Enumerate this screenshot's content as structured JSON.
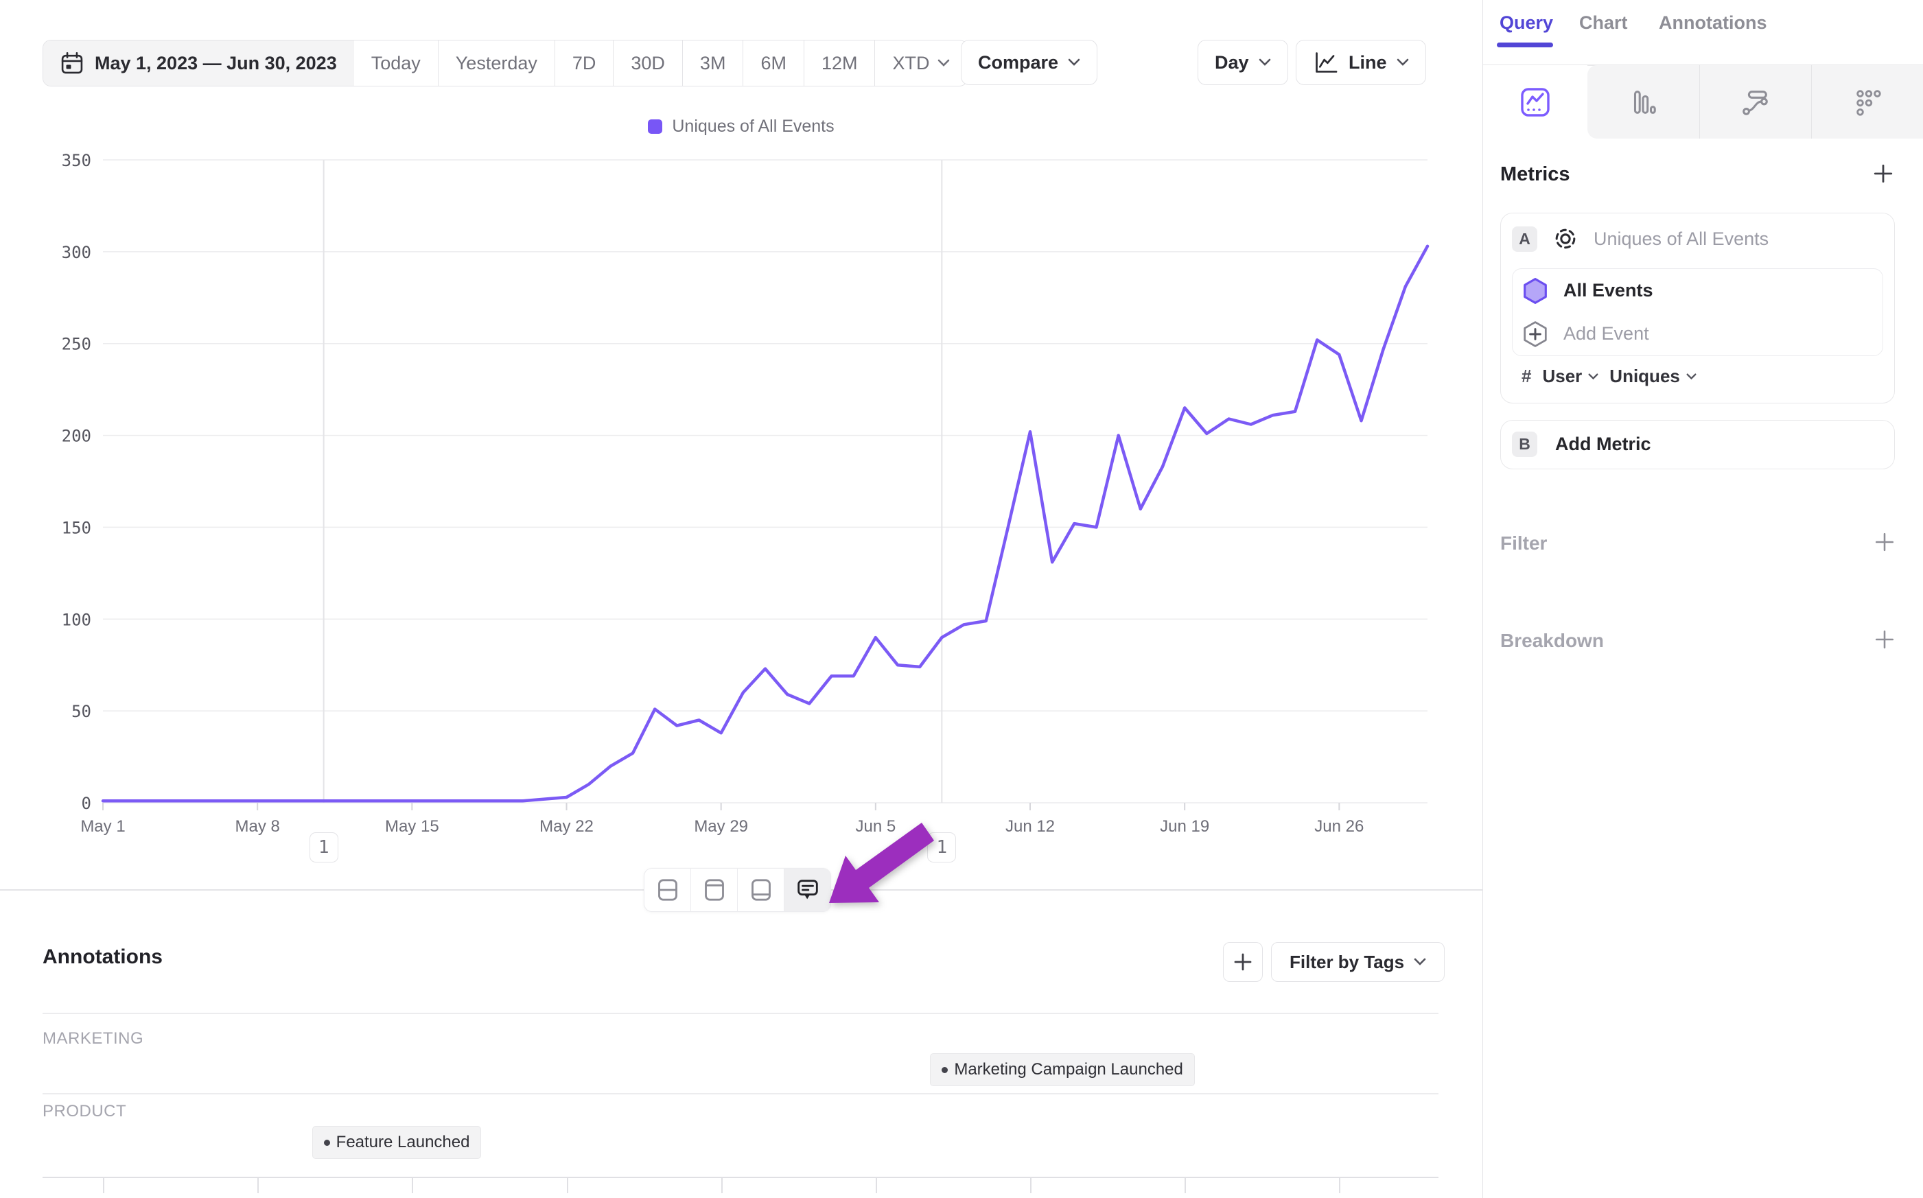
{
  "colors": {
    "accent": "#7B5AF5",
    "legend_swatch": "#7856F6",
    "tab_active": "#5246D6",
    "arrow": "#9C2EBE",
    "grid": "#ECECEE",
    "axis_line": "#E4E4E7",
    "chip_bg": "#F3F3F4"
  },
  "toolbar": {
    "date_range": "May 1, 2023 — Jun 30, 2023",
    "presets": [
      "Today",
      "Yesterday",
      "7D",
      "30D",
      "3M",
      "6M",
      "12M"
    ],
    "xtd": "XTD",
    "compare": "Compare",
    "granularity": "Day",
    "chart_type": "Line"
  },
  "legend": {
    "label": "Uniques of All Events"
  },
  "chart_data": {
    "type": "line",
    "title": "Uniques of All Events",
    "x_unit": "day",
    "x_range": [
      "May 1, 2023",
      "Jun 30, 2023"
    ],
    "x_tick_labels": [
      "May 1",
      "May 8",
      "May 15",
      "May 22",
      "May 29",
      "Jun 5",
      "Jun 12",
      "Jun 19",
      "Jun 26"
    ],
    "x_tick_days": [
      0,
      7,
      14,
      21,
      28,
      35,
      42,
      49,
      56
    ],
    "ylim": [
      0,
      350
    ],
    "y_ticks": [
      0,
      50,
      100,
      150,
      200,
      250,
      300,
      350
    ],
    "grid": "horizontal",
    "legend_position": "top-center",
    "series": [
      {
        "name": "Uniques of All Events",
        "color": "#7B5AF5",
        "values": [
          1,
          1,
          1,
          1,
          1,
          1,
          1,
          1,
          1,
          1,
          1,
          1,
          1,
          1,
          1,
          1,
          1,
          1,
          1,
          1,
          2,
          3,
          10,
          20,
          27,
          51,
          42,
          45,
          38,
          60,
          73,
          59,
          54,
          69,
          69,
          90,
          75,
          74,
          90,
          97,
          99,
          150,
          202,
          131,
          152,
          150,
          200,
          160,
          183,
          215,
          201,
          209,
          206,
          211,
          213,
          252,
          244,
          208,
          247,
          281,
          303
        ]
      }
    ],
    "annotation_markers": [
      {
        "day": 10,
        "badge": "1"
      },
      {
        "day": 38,
        "badge": "1"
      }
    ]
  },
  "chart_toolbar": {
    "buttons": [
      {
        "name": "layout-split-horizontal",
        "active": false
      },
      {
        "name": "layout-panel-top",
        "active": false
      },
      {
        "name": "layout-panel-bottom",
        "active": false
      },
      {
        "name": "toggle-annotations",
        "active": true
      }
    ]
  },
  "annotations_panel": {
    "title": "Annotations",
    "filter_button": "Filter by Tags",
    "groups": [
      {
        "name": "MARKETING",
        "items": [
          {
            "label": "Marketing Campaign Launched",
            "day": 38
          }
        ]
      },
      {
        "name": "PRODUCT",
        "items": [
          {
            "label": "Feature Launched",
            "day": 10
          }
        ]
      }
    ]
  },
  "sidebar": {
    "tabs": [
      {
        "label": "Query",
        "active": true
      },
      {
        "label": "Chart",
        "active": false
      },
      {
        "label": "Annotations",
        "active": false
      }
    ],
    "chart_types": [
      "insights",
      "bar",
      "flows",
      "retention"
    ],
    "metrics": {
      "heading": "Metrics",
      "items": [
        {
          "key": "A",
          "label": "Uniques of All Events",
          "events": [
            {
              "name": "All Events"
            }
          ],
          "add_event": "Add Event",
          "measure": {
            "symbol": "#",
            "entity": "User",
            "aggregation": "Uniques"
          }
        }
      ],
      "add_metric": {
        "key": "B",
        "label": "Add Metric"
      }
    },
    "filter": {
      "label": "Filter"
    },
    "breakdown": {
      "label": "Breakdown"
    }
  }
}
